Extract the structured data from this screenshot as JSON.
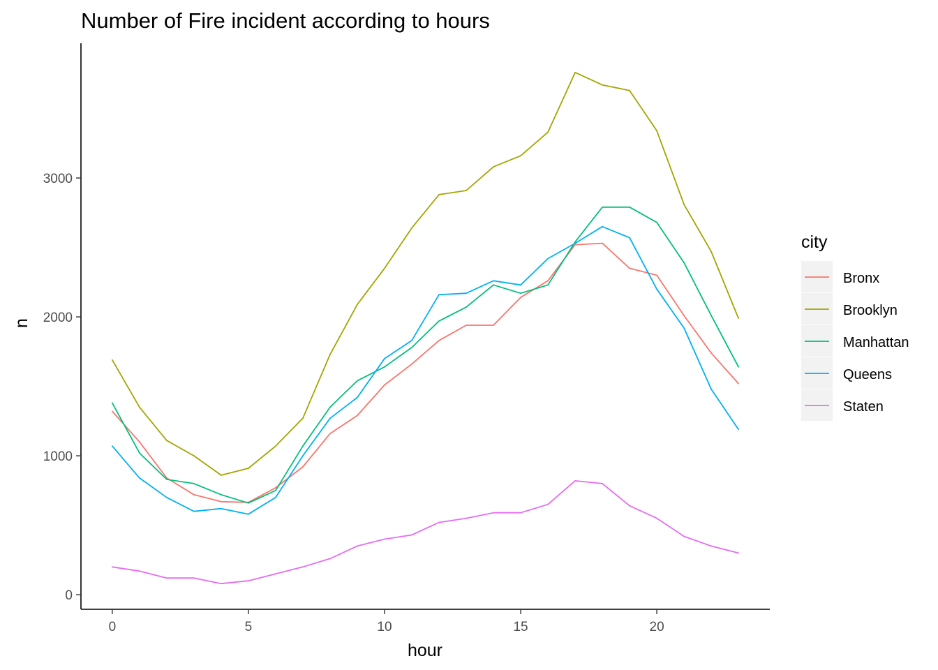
{
  "chart_data": {
    "type": "line",
    "title": "Number of Fire incident according to hours",
    "xlabel": "hour",
    "ylabel": "n",
    "xlim": [
      -1.15,
      24.15
    ],
    "ylim": [
      -105,
      3970
    ],
    "x_ticks": [
      0,
      5,
      10,
      15,
      20
    ],
    "y_ticks": [
      0,
      1000,
      2000,
      3000
    ],
    "grid": false,
    "legend_position": "right",
    "legend_title": "city",
    "x": [
      0,
      1,
      2,
      3,
      4,
      5,
      6,
      7,
      8,
      9,
      10,
      11,
      12,
      13,
      14,
      15,
      16,
      17,
      18,
      19,
      20,
      21,
      22,
      23
    ],
    "series": [
      {
        "name": "Bronx",
        "color": "#F8766D",
        "values": [
          1320,
          1100,
          840,
          720,
          670,
          665,
          770,
          920,
          1160,
          1290,
          1510,
          1660,
          1830,
          1940,
          1940,
          2140,
          2260,
          2520,
          2530,
          2350,
          2300,
          2010,
          1740,
          1520
        ]
      },
      {
        "name": "Brooklyn",
        "color": "#A3A500",
        "values": [
          1690,
          1350,
          1110,
          1000,
          860,
          910,
          1070,
          1270,
          1730,
          2090,
          2350,
          2640,
          2880,
          2910,
          3080,
          3160,
          3330,
          3760,
          3670,
          3630,
          3340,
          2810,
          2470,
          1990
        ]
      },
      {
        "name": "Manhattan",
        "color": "#00BF7D",
        "values": [
          1380,
          1020,
          830,
          800,
          720,
          660,
          750,
          1070,
          1350,
          1540,
          1640,
          1780,
          1970,
          2070,
          2230,
          2170,
          2230,
          2540,
          2790,
          2790,
          2680,
          2390,
          2010,
          1640
        ]
      },
      {
        "name": "Queens",
        "color": "#00B0F6",
        "values": [
          1070,
          840,
          700,
          600,
          620,
          580,
          700,
          1000,
          1270,
          1420,
          1700,
          1830,
          2160,
          2170,
          2260,
          2230,
          2420,
          2530,
          2650,
          2570,
          2200,
          1920,
          1480,
          1190
        ]
      },
      {
        "name": "Staten",
        "color": "#E76BF3",
        "values": [
          200,
          170,
          120,
          120,
          80,
          100,
          150,
          200,
          260,
          350,
          400,
          430,
          520,
          550,
          590,
          590,
          650,
          820,
          800,
          640,
          550,
          420,
          350,
          300
        ]
      }
    ]
  }
}
